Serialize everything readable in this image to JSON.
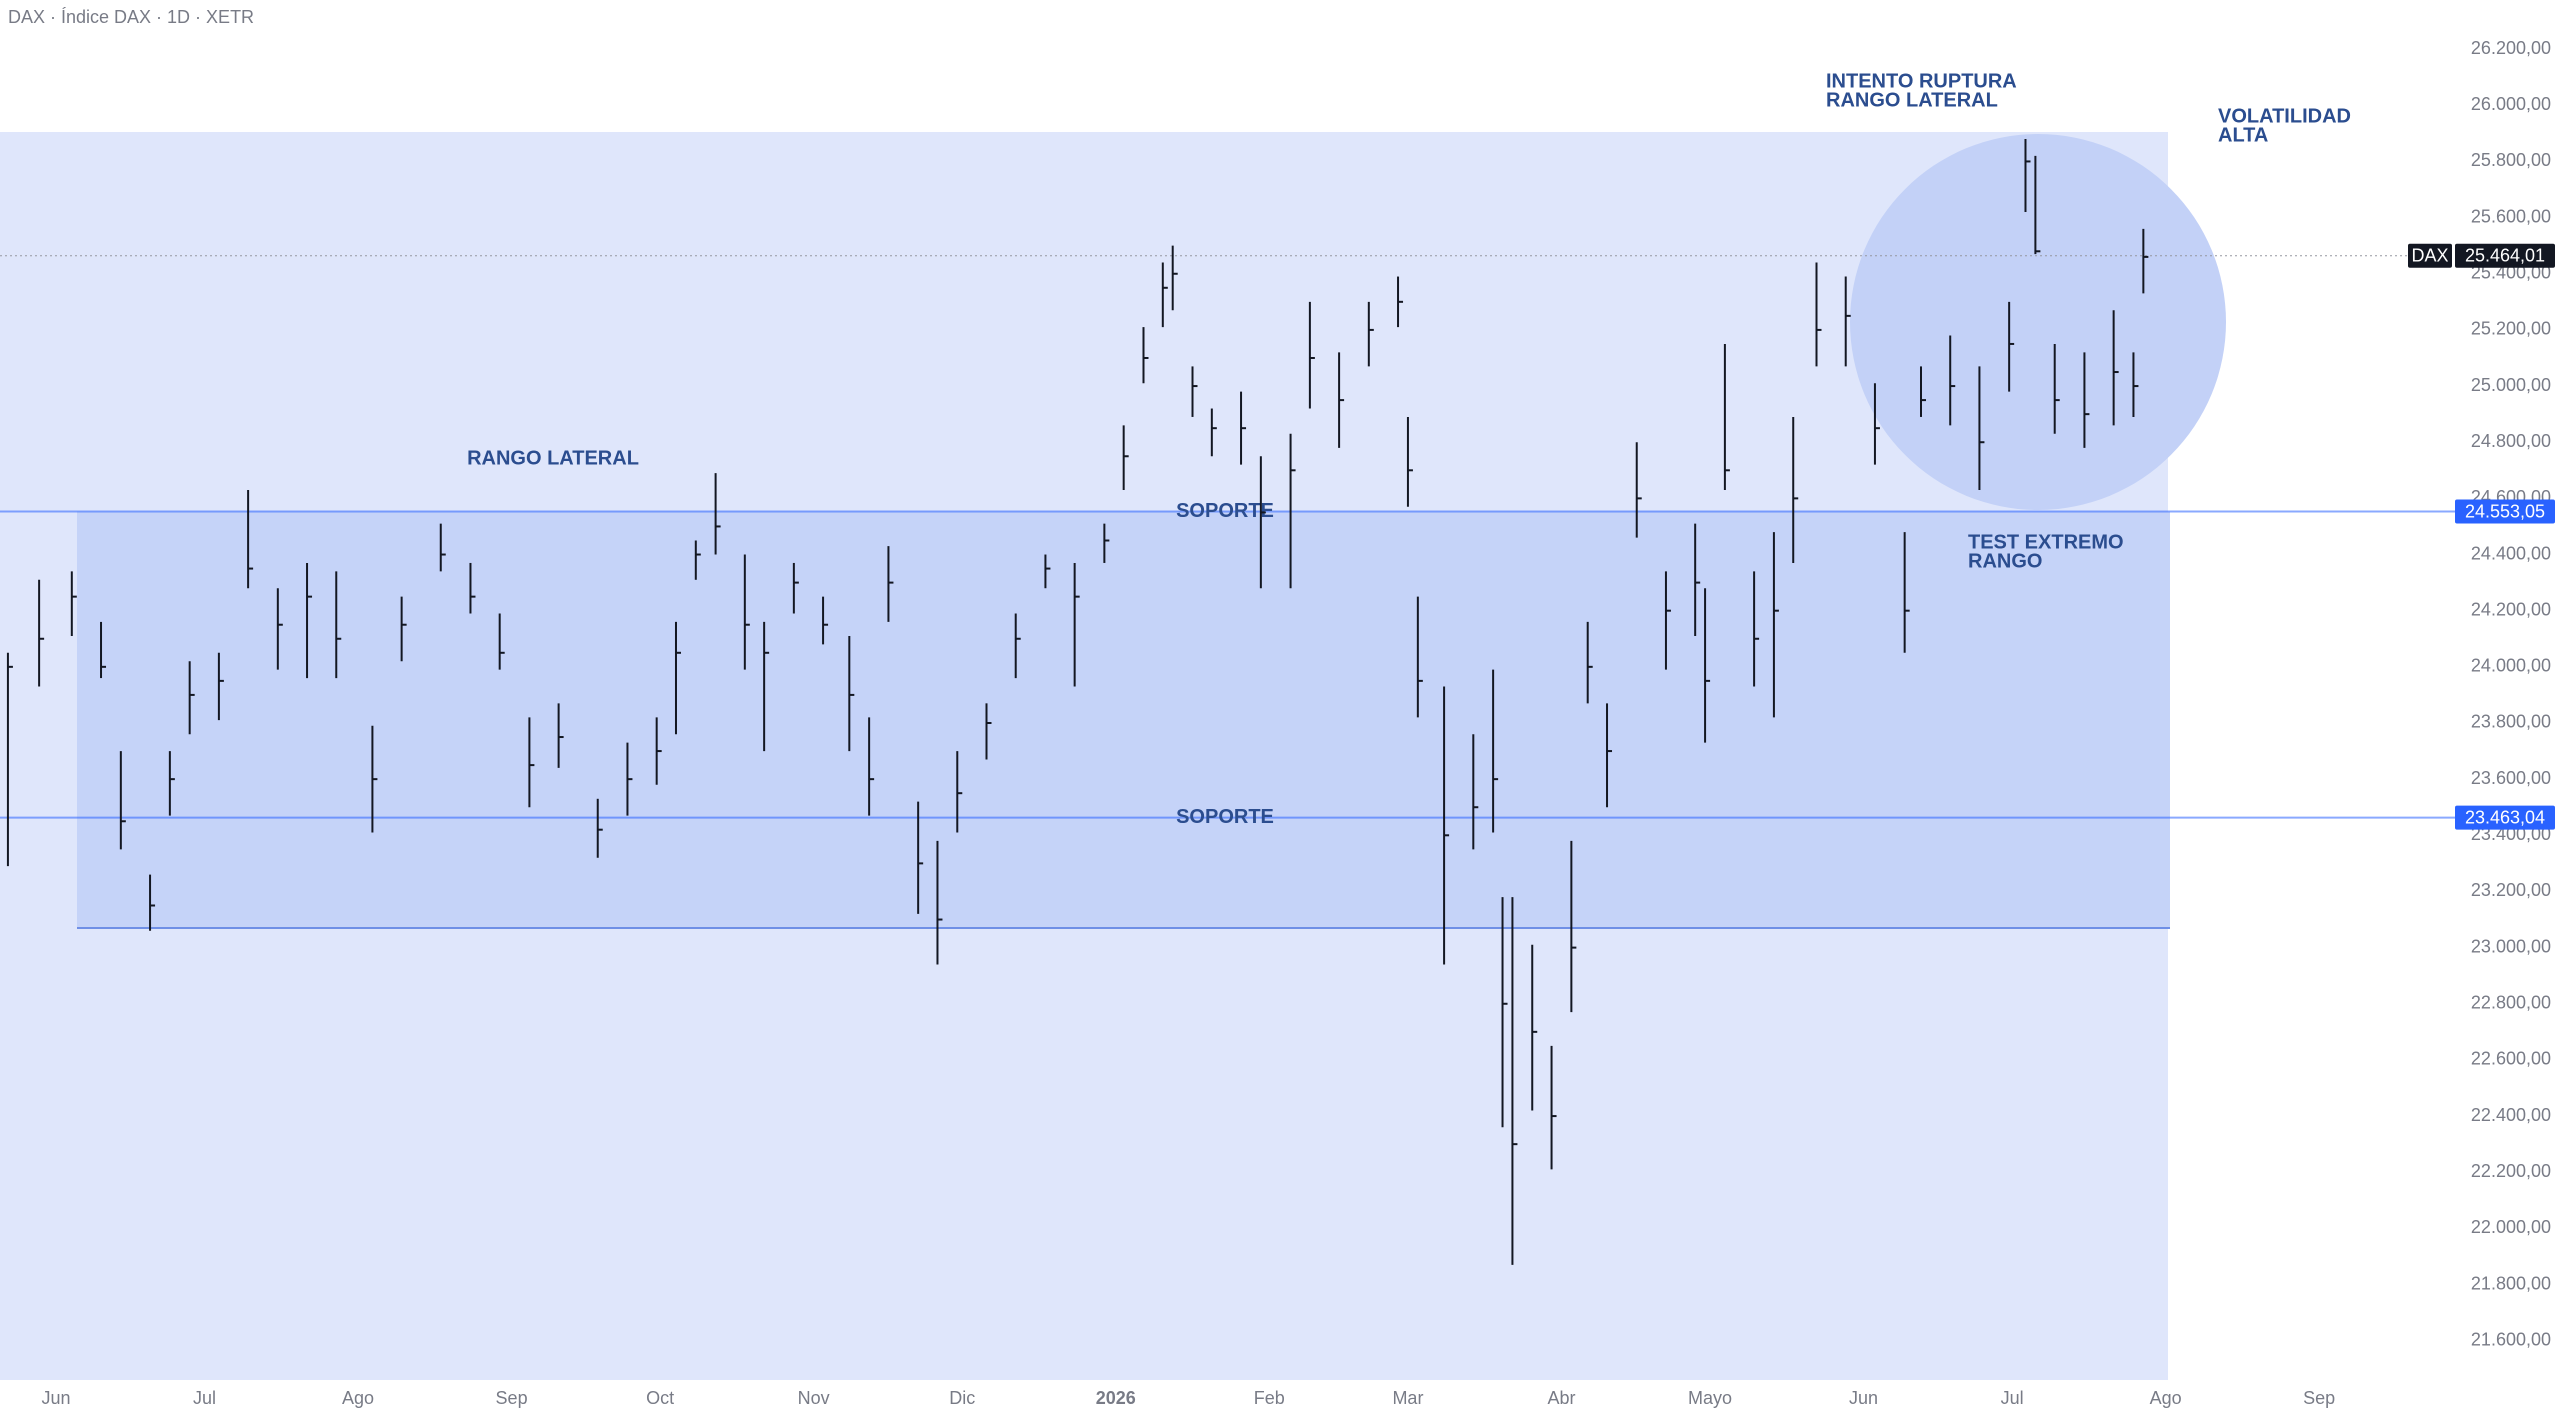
{
  "chart_data": {
    "type": "ohlc",
    "title": "DAX · Índice DAX · 1D · XETR",
    "color": "#131722",
    "x": [
      -9.7,
      -3.4,
      3.2,
      9.1,
      13.1,
      19.0,
      23.0,
      27.0,
      32.9,
      38.8,
      44.8,
      50.7,
      56.6,
      63.9,
      69.8,
      77.7,
      83.7,
      89.6,
      95.6,
      101.5,
      109.4,
      115.4,
      121.3,
      125.2,
      129.2,
      133.2,
      139.1,
      143.0,
      149.0,
      154.9,
      160.2,
      164.2,
      168.1,
      174.1,
      178.0,
      182.0,
      187.9,
      193.8,
      199.8,
      205.7,
      211.7,
      215.6,
      219.6,
      223.5,
      225.5,
      229.5,
      233.4,
      239.3,
      243.3,
      249.3,
      253.2,
      259.1,
      265.1,
      271.0,
      273.0,
      275.0,
      280.3,
      286.2,
      290.2,
      292.1,
      294.1,
      298.1,
      302.0,
      306.0,
      309.3,
      313.2,
      319.2,
      325.1,
      331.0,
      333.0,
      337.0,
      342.9,
      346.9,
      350.8,
      355.5,
      361.4,
      367.3,
      373.3,
      376.6,
      382.5,
      388.4,
      394.4,
      397.7,
      399.7,
      403.6,
      409.6,
      415.5,
      419.5,
      421.5
    ],
    "high": [
      24050,
      24310,
      24340,
      24160,
      23700,
      23260,
      23700,
      24020,
      24050,
      24630,
      24280,
      24370,
      24340,
      23790,
      24250,
      24510,
      24370,
      24190,
      23820,
      23870,
      23530,
      23730,
      23820,
      24160,
      24450,
      24690,
      24400,
      24160,
      24370,
      24250,
      24110,
      23820,
      24430,
      23520,
      23380,
      23700,
      23870,
      24190,
      24400,
      24370,
      24510,
      24860,
      25210,
      25440,
      25500,
      25070,
      24920,
      24980,
      24750,
      24830,
      25300,
      25120,
      25300,
      25390,
      24890,
      24250,
      23930,
      23760,
      23990,
      23180,
      23180,
      23010,
      22650,
      23380,
      24160,
      23870,
      24800,
      24340,
      24510,
      24280,
      25150,
      24340,
      24480,
      24890,
      25440,
      25390,
      25010,
      24480,
      25070,
      25180,
      25070,
      25300,
      25880,
      25820,
      25150,
      25120,
      25270,
      25120,
      25560
    ],
    "low": [
      23290,
      23930,
      24110,
      23960,
      23350,
      23060,
      23470,
      23760,
      23810,
      24280,
      23990,
      23960,
      23960,
      23410,
      24020,
      24340,
      24190,
      23990,
      23500,
      23640,
      23320,
      23470,
      23580,
      23760,
      24310,
      24400,
      23990,
      23700,
      24190,
      24080,
      23700,
      23470,
      24160,
      23120,
      22940,
      23410,
      23670,
      23960,
      24280,
      23930,
      24370,
      24630,
      25010,
      25210,
      25270,
      24890,
      24750,
      24720,
      24280,
      24280,
      24920,
      24780,
      25070,
      25210,
      24570,
      23820,
      22940,
      23350,
      23410,
      22360,
      21870,
      22420,
      22210,
      22770,
      23870,
      23500,
      24460,
      23990,
      24110,
      23730,
      24630,
      23930,
      23820,
      24370,
      25070,
      25070,
      24720,
      24050,
      24890,
      24860,
      24630,
      24980,
      25620,
      25470,
      24830,
      24780,
      24860,
      24890,
      25330
    ],
    "close": [
      24000,
      24100,
      24250,
      24000,
      23450,
      23150,
      23600,
      23900,
      23950,
      24350,
      24150,
      24250,
      24100,
      23600,
      24150,
      24400,
      24250,
      24050,
      23650,
      23750,
      23420,
      23600,
      23700,
      24050,
      24400,
      24500,
      24150,
      24050,
      24300,
      24150,
      23900,
      23600,
      24300,
      23300,
      23100,
      23550,
      23800,
      24100,
      24350,
      24250,
      24450,
      24750,
      25100,
      25350,
      25400,
      25000,
      24850,
      24850,
      24550,
      24700,
      25100,
      24950,
      25200,
      25300,
      24700,
      23950,
      23400,
      23500,
      23600,
      22800,
      22300,
      22700,
      22400,
      23000,
      24000,
      23700,
      24600,
      24200,
      24300,
      23950,
      24700,
      24100,
      24200,
      24600,
      25200,
      25250,
      24850,
      24200,
      24950,
      25000,
      24800,
      25150,
      25800,
      25480,
      24950,
      24900,
      25050,
      25000,
      25460
    ],
    "xlim": [
      -11.3,
      481.4
    ],
    "xticks": [
      {
        "value": 0,
        "label": "Jun"
      },
      {
        "value": 30,
        "label": "Jul"
      },
      {
        "value": 61,
        "label": "Ago"
      },
      {
        "value": 92,
        "label": "Sep"
      },
      {
        "value": 122,
        "label": "Oct"
      },
      {
        "value": 153,
        "label": "Nov"
      },
      {
        "value": 183,
        "label": "Dic"
      },
      {
        "value": 214,
        "label": "2026"
      },
      {
        "value": 245,
        "label": "Feb"
      },
      {
        "value": 273,
        "label": "Mar"
      },
      {
        "value": 304,
        "label": "Abr"
      },
      {
        "value": 334,
        "label": "Mayo"
      },
      {
        "value": 365,
        "label": "Jun"
      },
      {
        "value": 395,
        "label": "Jul"
      },
      {
        "value": 426,
        "label": "Ago"
      },
      {
        "value": 457,
        "label": "Sep"
      }
    ],
    "ylim": [
      21460,
      26375
    ],
    "yticks": [
      {
        "value": 21600,
        "label": "21.600,00"
      },
      {
        "value": 21800,
        "label": "21.800,00"
      },
      {
        "value": 22000,
        "label": "22.000,00"
      },
      {
        "value": 22200,
        "label": "22.200,00"
      },
      {
        "value": 22400,
        "label": "22.400,00"
      },
      {
        "value": 22600,
        "label": "22.600,00"
      },
      {
        "value": 22800,
        "label": "22.800,00"
      },
      {
        "value": 23000,
        "label": "23.000,00"
      },
      {
        "value": 23200,
        "label": "23.200,00"
      },
      {
        "value": 23400,
        "label": "23.400,00"
      },
      {
        "value": 23600,
        "label": "23.600,00"
      },
      {
        "value": 23800,
        "label": "23.800,00"
      },
      {
        "value": 24000,
        "label": "24.000,00"
      },
      {
        "value": 24200,
        "label": "24.200,00"
      },
      {
        "value": 24400,
        "label": "24.400,00"
      },
      {
        "value": 24600,
        "label": "24.600,00"
      },
      {
        "value": 24800,
        "label": "24.800,00"
      },
      {
        "value": 25000,
        "label": "25.000,00"
      },
      {
        "value": 25200,
        "label": "25.200,00"
      },
      {
        "value": 25400,
        "label": "25.400,00"
      },
      {
        "value": 25600,
        "label": "25.600,00"
      },
      {
        "value": 25800,
        "label": "25.800,00"
      },
      {
        "value": 26000,
        "label": "26.000,00"
      },
      {
        "value": 26200,
        "label": "26.200,00"
      }
    ],
    "grid": false,
    "last_price": {
      "name": "DAX",
      "value": 25464.01,
      "label": "25.464,01"
    },
    "levels": [
      {
        "value": 24553.05,
        "label": "24.553,05",
        "text": "SOPORTE",
        "color": "#2962ff"
      },
      {
        "value": 23463.04,
        "label": "23.463,04",
        "text": "SOPORTE",
        "color": "#2962ff"
      }
    ],
    "annotations": [
      {
        "lines": [
          "RANGO LATERAL"
        ]
      },
      {
        "lines": [
          "INTENTO RUPTURA",
          "RANGO LATERAL"
        ]
      },
      {
        "lines": [
          "VOLATILIDAD",
          "ALTA"
        ]
      },
      {
        "lines": [
          "TEST EXTREMO",
          "RANGO"
        ]
      }
    ]
  }
}
